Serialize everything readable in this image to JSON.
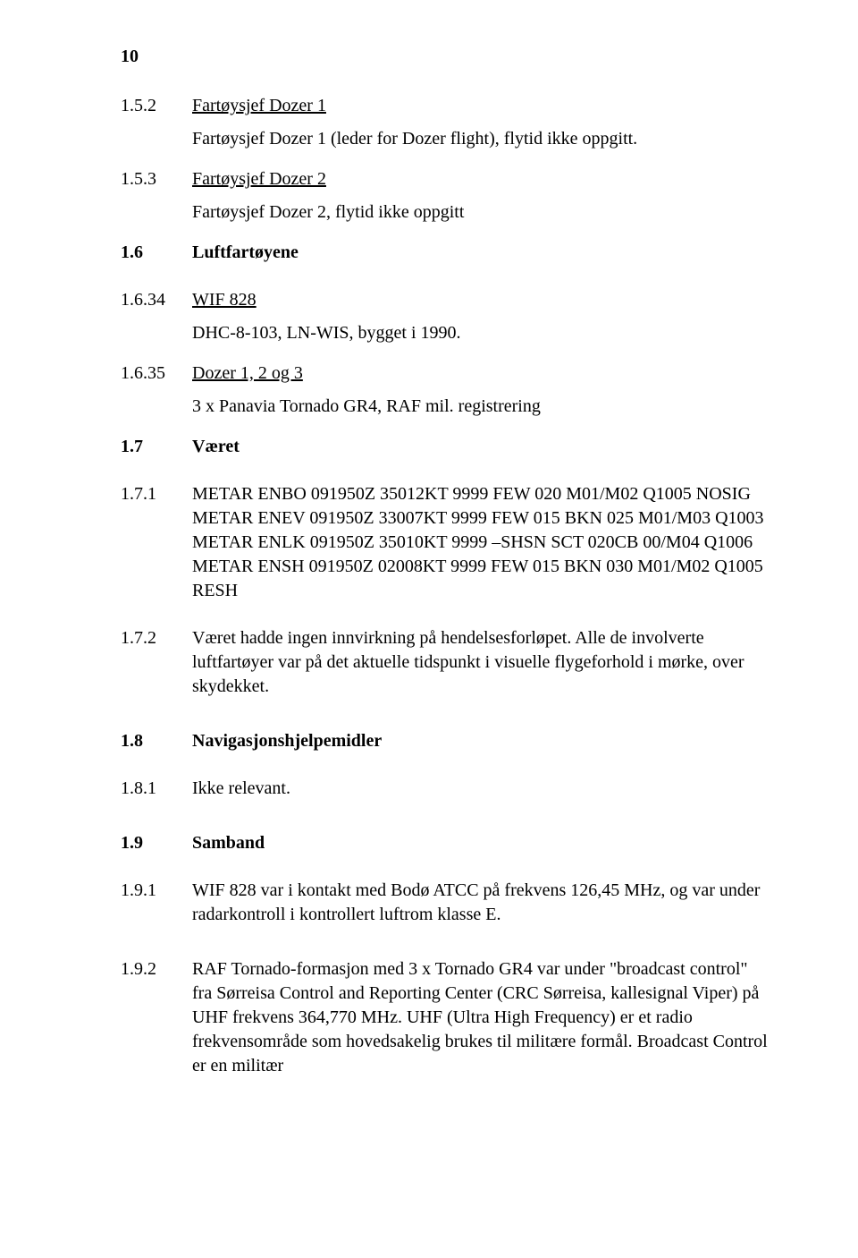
{
  "page_number": "10",
  "s152": {
    "num": "1.5.2",
    "title": "Fartøysjef Dozer 1",
    "body": "Fartøysjef Dozer 1 (leder for Dozer flight), flytid ikke oppgitt."
  },
  "s153": {
    "num": "1.5.3",
    "title": "Fartøysjef Dozer 2",
    "body": "Fartøysjef Dozer 2, flytid ikke oppgitt"
  },
  "s16": {
    "num": "1.6",
    "title": "Luftfartøyene"
  },
  "s1634": {
    "num": "1.6.34",
    "title": "WIF 828",
    "body": "DHC-8-103, LN-WIS, bygget i 1990."
  },
  "s1635": {
    "num": "1.6.35",
    "title": "Dozer 1, 2 og 3",
    "body": "3 x Panavia Tornado GR4, RAF mil. registrering"
  },
  "s17": {
    "num": "1.7",
    "title": "Været"
  },
  "s171": {
    "num": "1.7.1",
    "l1": "METAR ENBO 091950Z 35012KT 9999 FEW 020 M01/M02 Q1005 NOSIG",
    "l2": "METAR ENEV 091950Z 33007KT 9999 FEW 015 BKN 025 M01/M03 Q1003",
    "l3": "METAR ENLK 091950Z 35010KT 9999 –SHSN SCT 020CB 00/M04 Q1006",
    "l4": "METAR ENSH 091950Z 02008KT 9999 FEW 015 BKN 030 M01/M02 Q1005",
    "l5": "RESH"
  },
  "s172": {
    "num": "1.7.2",
    "body": "Været hadde ingen innvirkning på hendelsesforløpet. Alle de involverte luftfartøyer var på det aktuelle tidspunkt i visuelle flygeforhold i mørke, over skydekket."
  },
  "s18": {
    "num": "1.8",
    "title": "Navigasjonshjelpemidler"
  },
  "s181": {
    "num": "1.8.1",
    "body": "Ikke relevant."
  },
  "s19": {
    "num": "1.9",
    "title": "Samband"
  },
  "s191": {
    "num": "1.9.1",
    "body": "WIF 828 var i kontakt med Bodø ATCC på frekvens 126,45 MHz, og var under radarkontroll i kontrollert luftrom klasse E."
  },
  "s192": {
    "num": "1.9.2",
    "body": "RAF Tornado-formasjon med 3 x Tornado GR4 var under \"broadcast control\" fra Sørreisa Control and Reporting Center (CRC Sørreisa, kallesignal Viper) på UHF frekvens 364,770 MHz.  UHF (Ultra High Frequency) er et radio frekvensområde som hovedsakelig brukes til militære formål.  Broadcast Control er en militær"
  }
}
